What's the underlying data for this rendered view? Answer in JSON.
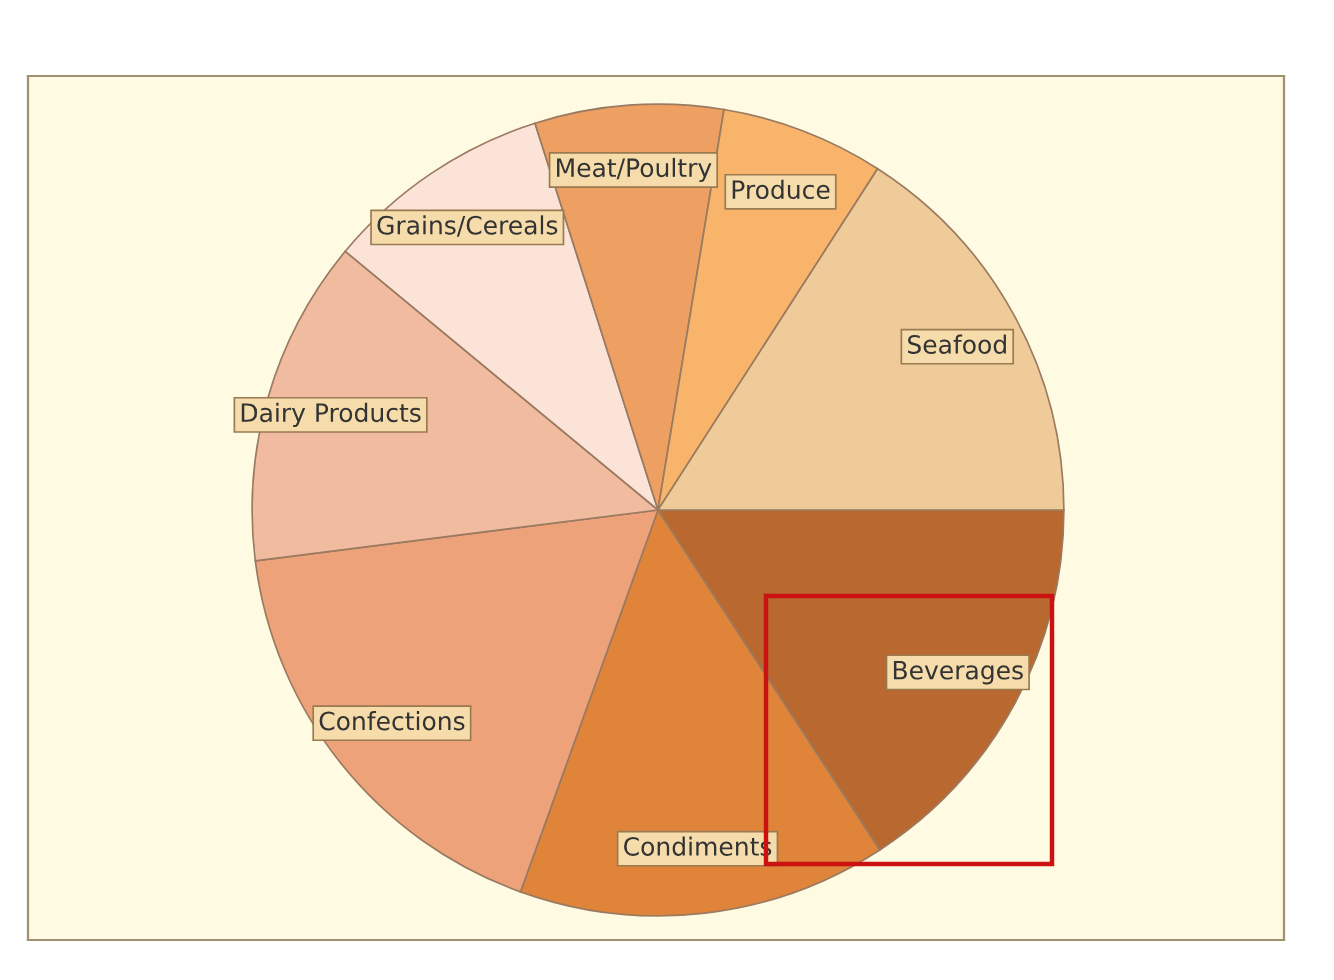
{
  "chart_data": {
    "type": "pie",
    "categories": [
      "Beverages",
      "Condiments",
      "Confections",
      "Dairy Products",
      "Grains/Cereals",
      "Meat/Poultry",
      "Produce",
      "Seafood"
    ],
    "values": [
      15.8,
      14.7,
      17.5,
      13.0,
      9.1,
      7.5,
      6.5,
      15.9
    ],
    "colors": [
      "#b9692f",
      "#e0843a",
      "#eea27a",
      "#f1bba0",
      "#fbe3d8",
      "#ee9f62",
      "#f7b46a",
      "#efcb9a"
    ],
    "legend": false
  }
}
